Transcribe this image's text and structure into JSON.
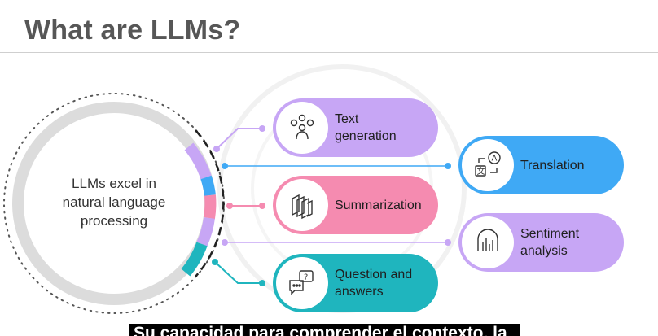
{
  "title": "What are LLMs?",
  "center": {
    "line1": "LLMs excel in",
    "line2": "natural language",
    "line3": "processing"
  },
  "pills": [
    {
      "id": "text-generation",
      "label": "Text\ngeneration",
      "color": "#c7a6f5",
      "icon": "people-network-icon"
    },
    {
      "id": "translation",
      "label": "Translation",
      "color": "#3fa9f5",
      "icon": "translate-icon"
    },
    {
      "id": "summarization",
      "label": "Summarization",
      "color": "#f58bb0",
      "icon": "layers-icon"
    },
    {
      "id": "sentiment",
      "label": "Sentiment\nanalysis",
      "color": "#c7a6f5",
      "icon": "sentiment-chart-icon"
    },
    {
      "id": "qa",
      "label": "Question and\nanswers",
      "color": "#1fb5be",
      "icon": "chat-question-icon"
    }
  ],
  "subtitle": "Su capacidad para comprender el contexto, la"
}
